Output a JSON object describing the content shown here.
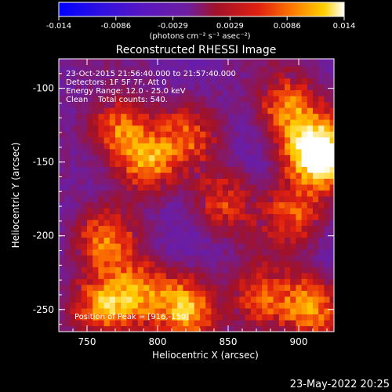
{
  "chart_data": {
    "type": "heatmap",
    "title": "Reconstructed RHESSI Image",
    "xlabel": "Heliocentric X (arcsec)",
    "ylabel": "Heliocentric Y (arcsec)",
    "xlim": [
      730,
      925
    ],
    "ylim": [
      -265,
      -80
    ],
    "x_ticks": [
      750,
      800,
      850,
      900
    ],
    "y_ticks": [
      -100,
      -150,
      -200,
      -250
    ],
    "colorbar": {
      "range": [
        -0.014,
        0.014
      ],
      "ticks": [
        "-0.014",
        "-0.0086",
        "-0.0029",
        "0.0029",
        "0.0086",
        "0.014"
      ],
      "label": "(photons cm⁻² s⁻¹ asec⁻²)",
      "colors": [
        "#0000ff",
        "#5a17c0",
        "#6d1ea0",
        "#a0122a",
        "#e02010",
        "#ff7a00",
        "#ffd000",
        "#ffffff"
      ]
    },
    "annotations": [
      "23-Oct-2015 21:56:40.000 to 21:57:40.000",
      "Detectors: 1F 5F 7F, Att 0",
      "Energy Range: 12.0 - 25.0 keV",
      "Clean    Total counts: 540.",
      "Position of Peak = [916,-150]"
    ],
    "sources": [
      {
        "x": 770,
        "y": -130,
        "intensity": 0.01
      },
      {
        "x": 790,
        "y": -150,
        "intensity": 0.011
      },
      {
        "x": 762,
        "y": -205,
        "intensity": 0.009
      },
      {
        "x": 760,
        "y": -250,
        "intensity": 0.012
      },
      {
        "x": 785,
        "y": -240,
        "intensity": 0.01
      },
      {
        "x": 818,
        "y": -250,
        "intensity": 0.013
      },
      {
        "x": 845,
        "y": -180,
        "intensity": 0.007
      },
      {
        "x": 890,
        "y": -115,
        "intensity": 0.01
      },
      {
        "x": 905,
        "y": -140,
        "intensity": 0.012
      },
      {
        "x": 916,
        "y": -150,
        "intensity": 0.014
      },
      {
        "x": 895,
        "y": -185,
        "intensity": 0.008
      },
      {
        "x": 905,
        "y": -250,
        "intensity": 0.011
      },
      {
        "x": 872,
        "y": -245,
        "intensity": 0.008
      },
      {
        "x": 818,
        "y": -135,
        "intensity": 0.007
      }
    ],
    "grid": false
  },
  "footer": {
    "timestamp": "23-May-2022 20:25"
  }
}
